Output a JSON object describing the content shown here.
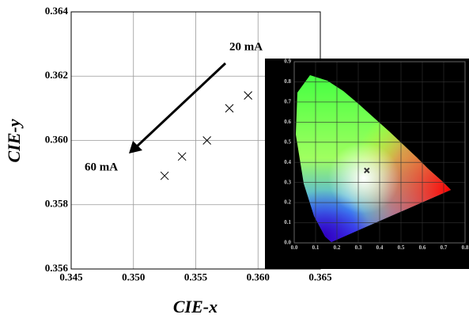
{
  "chart_data": [
    {
      "type": "scatter",
      "xlabel": "CIE-x",
      "ylabel": "CIE-y",
      "x": [
        0.3525,
        0.3539,
        0.3559,
        0.3577,
        0.3592
      ],
      "y": [
        0.3589,
        0.3595,
        0.36,
        0.361,
        0.3614
      ],
      "color": "#000000",
      "xlim": [
        0.345,
        0.365
      ],
      "ylim": [
        0.356,
        0.364
      ],
      "xticks": [
        0.345,
        {
          "value": 0.35,
          "label": "0.350"
        },
        0.355,
        {
          "value": 0.36,
          "label": "0.360"
        },
        0.365
      ],
      "yticks": [
        0.356,
        0.358,
        {
          "value": 0.36,
          "label": "0.360"
        },
        0.362,
        0.364
      ],
      "grid": true,
      "annotations": [
        "20 mA",
        "60 mA"
      ]
    },
    {
      "type": "scatter",
      "x": [
        0.34
      ],
      "y": [
        0.36
      ],
      "color": "#333333",
      "xlim": [
        0.0,
        0.8
      ],
      "ylim": [
        0.0,
        0.9
      ],
      "xticks": [
        {
          "value": 0,
          "label": "0.0"
        },
        0.1,
        0.2,
        0.3,
        0.4,
        0.5,
        0.6,
        0.7,
        0.8
      ],
      "yticks": [
        {
          "value": 0,
          "label": "0.0"
        },
        0.1,
        0.2,
        0.3,
        0.4,
        0.5,
        0.6,
        0.7,
        0.8,
        0.9
      ],
      "grid": true
    }
  ]
}
